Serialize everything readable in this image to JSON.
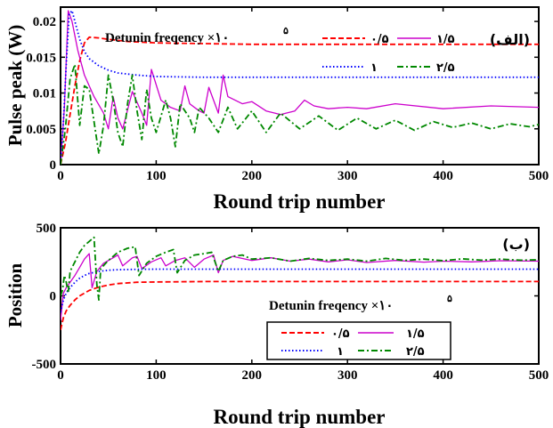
{
  "chart_data": [
    {
      "type": "line",
      "panel_label": "(الف)",
      "annotation": "Detunin freqency ×۱۰",
      "annotation_sup": "۵",
      "xlabel": "Round trip number",
      "ylabel": "Pulse peak (W)",
      "xlim": [
        0,
        500
      ],
      "ylim": [
        0,
        0.022
      ],
      "xticks": [
        "0",
        "100",
        "200",
        "300",
        "400",
        "500"
      ],
      "yticks": [
        "0",
        "0.005",
        "0.01",
        "0.015",
        "0.02"
      ],
      "legend_position": "top-right",
      "series": [
        {
          "name": "۰/۵",
          "color": "#ff0000",
          "dash": "dashed",
          "x": [
            0,
            5,
            10,
            15,
            20,
            25,
            30,
            40,
            50,
            70,
            100,
            150,
            200,
            300,
            400,
            500
          ],
          "y": [
            0,
            0.003,
            0.007,
            0.011,
            0.0145,
            0.017,
            0.0178,
            0.0177,
            0.0175,
            0.0172,
            0.017,
            0.0169,
            0.0168,
            0.0168,
            0.0168,
            0.0168
          ]
        },
        {
          "name": "۱/۵",
          "color": "#cc00cc",
          "dash": "solid",
          "x": [
            0,
            4,
            8,
            12,
            18,
            25,
            35,
            45,
            50,
            55,
            60,
            65,
            75,
            85,
            90,
            95,
            105,
            115,
            125,
            130,
            135,
            145,
            150,
            155,
            165,
            170,
            175,
            190,
            200,
            215,
            230,
            245,
            255,
            265,
            280,
            300,
            320,
            350,
            400,
            450,
            500
          ],
          "y": [
            0,
            0.008,
            0.0215,
            0.02,
            0.016,
            0.0125,
            0.0095,
            0.0072,
            0.005,
            0.0095,
            0.0065,
            0.005,
            0.0102,
            0.0072,
            0.0055,
            0.0133,
            0.009,
            0.008,
            0.0075,
            0.011,
            0.0085,
            0.0075,
            0.0072,
            0.0108,
            0.0072,
            0.0125,
            0.0095,
            0.0085,
            0.0088,
            0.0075,
            0.007,
            0.0075,
            0.009,
            0.0082,
            0.0078,
            0.008,
            0.0078,
            0.0085,
            0.0078,
            0.0082,
            0.008
          ]
        },
        {
          "name": "۱",
          "color": "#0000ff",
          "dash": "dotted",
          "x": [
            0,
            3,
            6,
            9,
            12,
            16,
            20,
            25,
            30,
            40,
            50,
            60,
            80,
            100,
            150,
            200,
            300,
            400,
            500
          ],
          "y": [
            0,
            0.006,
            0.014,
            0.021,
            0.0215,
            0.0195,
            0.0175,
            0.0158,
            0.0148,
            0.0138,
            0.0132,
            0.0128,
            0.0125,
            0.0123,
            0.0122,
            0.0122,
            0.0122,
            0.0122,
            0.0122
          ]
        },
        {
          "name": "۲/۵",
          "color": "#008800",
          "dash": "dashdot",
          "x": [
            0,
            5,
            10,
            15,
            20,
            25,
            30,
            35,
            40,
            45,
            50,
            55,
            60,
            65,
            70,
            75,
            80,
            85,
            90,
            95,
            100,
            110,
            115,
            120,
            125,
            135,
            140,
            145,
            155,
            165,
            175,
            185,
            200,
            215,
            230,
            250,
            270,
            290,
            310,
            330,
            350,
            370,
            390,
            410,
            430,
            450,
            470,
            490,
            500
          ],
          "y": [
            0,
            0.005,
            0.012,
            0.014,
            0.0055,
            0.011,
            0.0105,
            0.006,
            0.0015,
            0.0055,
            0.0125,
            0.009,
            0.0045,
            0.0025,
            0.0085,
            0.0125,
            0.0075,
            0.0035,
            0.0105,
            0.0065,
            0.0045,
            0.009,
            0.0065,
            0.0025,
            0.0085,
            0.0065,
            0.0045,
            0.008,
            0.0065,
            0.0045,
            0.008,
            0.005,
            0.0075,
            0.0045,
            0.0072,
            0.005,
            0.0068,
            0.0048,
            0.0065,
            0.005,
            0.0062,
            0.0048,
            0.006,
            0.0052,
            0.0058,
            0.005,
            0.0057,
            0.0053,
            0.0056
          ]
        }
      ]
    },
    {
      "type": "line",
      "panel_label": "(ب)",
      "annotation": "Detunin freqency ×۱۰",
      "annotation_sup": "۵",
      "xlabel": "Round trip number",
      "ylabel": "Position",
      "xlim": [
        0,
        500
      ],
      "ylim": [
        -500,
        500
      ],
      "xticks": [
        "0",
        "100",
        "200",
        "300",
        "400",
        "500"
      ],
      "yticks": [
        "-500",
        "0",
        "500"
      ],
      "legend_position": "bottom-center",
      "series": [
        {
          "name": "۰/۵",
          "color": "#ff0000",
          "dash": "dashed",
          "x": [
            0,
            3,
            6,
            10,
            15,
            20,
            30,
            40,
            50,
            60,
            80,
            100,
            150,
            200,
            300,
            400,
            500
          ],
          "y": [
            -250,
            -160,
            -110,
            -70,
            -30,
            0,
            40,
            65,
            80,
            90,
            100,
            102,
            105,
            105,
            105,
            105,
            105
          ]
        },
        {
          "name": "۱/۵",
          "color": "#cc00cc",
          "dash": "solid",
          "x": [
            0,
            3,
            6,
            10,
            15,
            20,
            25,
            30,
            33,
            38,
            45,
            55,
            60,
            65,
            70,
            75,
            80,
            85,
            95,
            105,
            110,
            120,
            130,
            140,
            150,
            160,
            165,
            170,
            180,
            200,
            220,
            240,
            260,
            280,
            300,
            320,
            350,
            380,
            400,
            430,
            460,
            500
          ],
          "y": [
            -180,
            20,
            60,
            100,
            150,
            210,
            270,
            310,
            60,
            180,
            240,
            280,
            300,
            220,
            250,
            280,
            290,
            200,
            250,
            280,
            220,
            260,
            280,
            210,
            270,
            300,
            170,
            260,
            290,
            260,
            280,
            255,
            270,
            250,
            265,
            245,
            260,
            248,
            255,
            250,
            258,
            255
          ]
        },
        {
          "name": "۱",
          "color": "#0000ff",
          "dash": "dotted",
          "x": [
            0,
            3,
            6,
            10,
            15,
            20,
            25,
            30,
            40,
            50,
            60,
            80,
            100,
            150,
            200,
            300,
            400,
            500
          ],
          "y": [
            -120,
            -30,
            20,
            60,
            100,
            130,
            150,
            165,
            180,
            188,
            192,
            195,
            196,
            196,
            196,
            196,
            196,
            196
          ]
        },
        {
          "name": "۲/۵",
          "color": "#008800",
          "dash": "dashdot",
          "x": [
            0,
            2,
            4,
            6,
            8,
            10,
            15,
            20,
            25,
            30,
            35,
            38,
            40,
            42,
            50,
            60,
            70,
            78,
            82,
            90,
            100,
            110,
            118,
            122,
            130,
            140,
            150,
            158,
            165,
            170,
            180,
            190,
            200,
            220,
            240,
            260,
            280,
            300,
            320,
            340,
            360,
            380,
            400,
            420,
            440,
            460,
            480,
            500
          ],
          "y": [
            0,
            40,
            150,
            100,
            20,
            180,
            250,
            320,
            370,
            400,
            430,
            80,
            -30,
            200,
            260,
            320,
            350,
            360,
            150,
            240,
            290,
            320,
            340,
            170,
            260,
            300,
            310,
            320,
            180,
            260,
            290,
            300,
            270,
            280,
            255,
            275,
            260,
            270,
            255,
            275,
            260,
            270,
            258,
            272,
            262,
            270,
            262,
            265
          ]
        }
      ]
    }
  ]
}
